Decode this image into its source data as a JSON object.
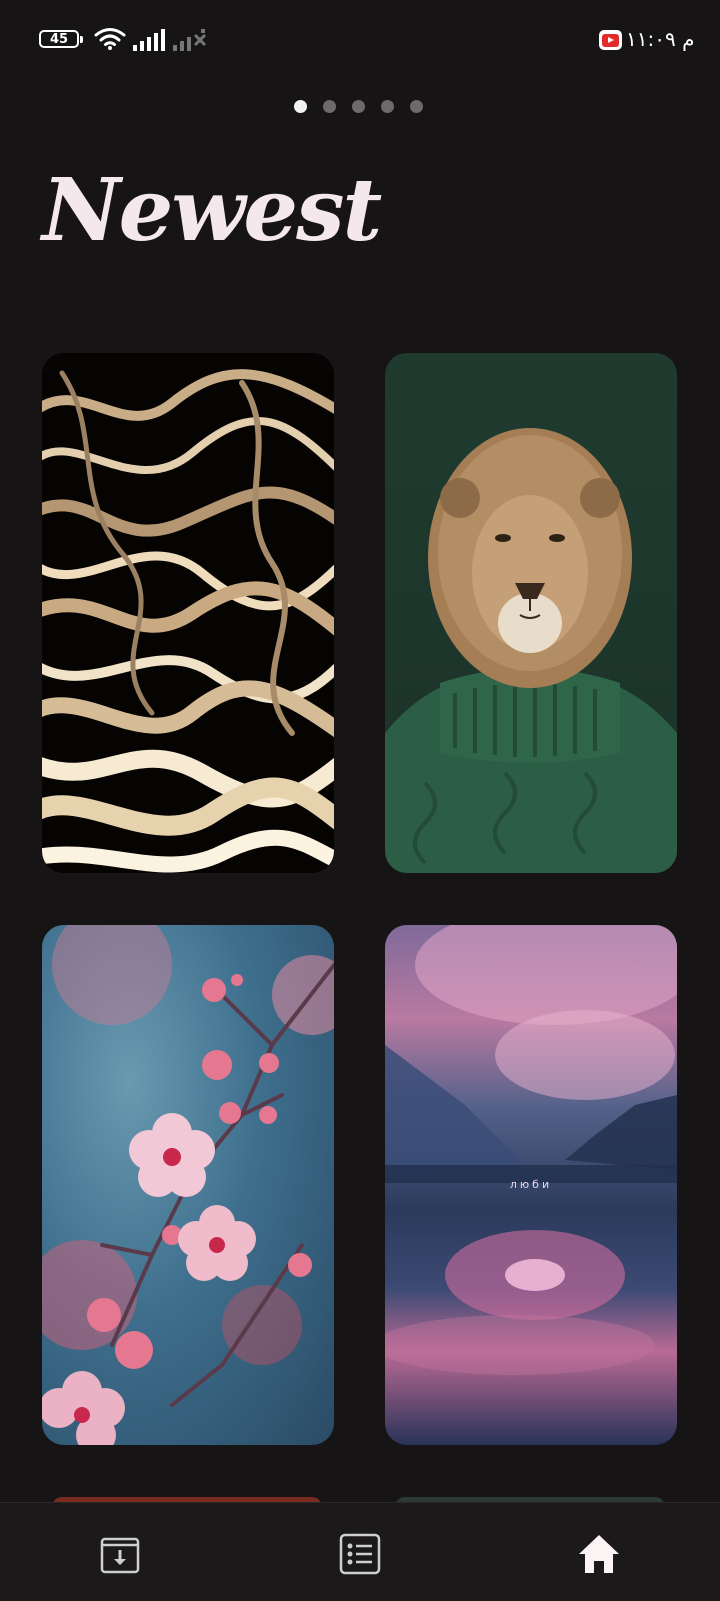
{
  "status_bar": {
    "battery_level": "45",
    "time": "م ١١:٠٩",
    "icons": [
      "battery-icon",
      "wifi-icon",
      "signal-icon",
      "signal-off-icon",
      "youtube-icon"
    ]
  },
  "pager": {
    "total_pages": 5,
    "active_index": 0
  },
  "page_title": "Newest",
  "wallpapers": [
    {
      "name": "liquid-gold-abstract",
      "caption": ""
    },
    {
      "name": "lion-in-green-sweater",
      "caption": ""
    },
    {
      "name": "pink-cherry-blossoms",
      "caption": ""
    },
    {
      "name": "misty-lake-pink-sky",
      "caption": "люби"
    }
  ],
  "bottom_nav": [
    {
      "name": "downloads",
      "icon": "download-icon"
    },
    {
      "name": "categories",
      "icon": "list-icon"
    },
    {
      "name": "home",
      "icon": "home-icon",
      "active": true
    }
  ],
  "colors": {
    "background": "#161414",
    "nav_background": "#1b1919",
    "title": "#f4e8ec",
    "dot_active": "#f2f2f2",
    "dot_inactive": "#6d6a6a"
  }
}
